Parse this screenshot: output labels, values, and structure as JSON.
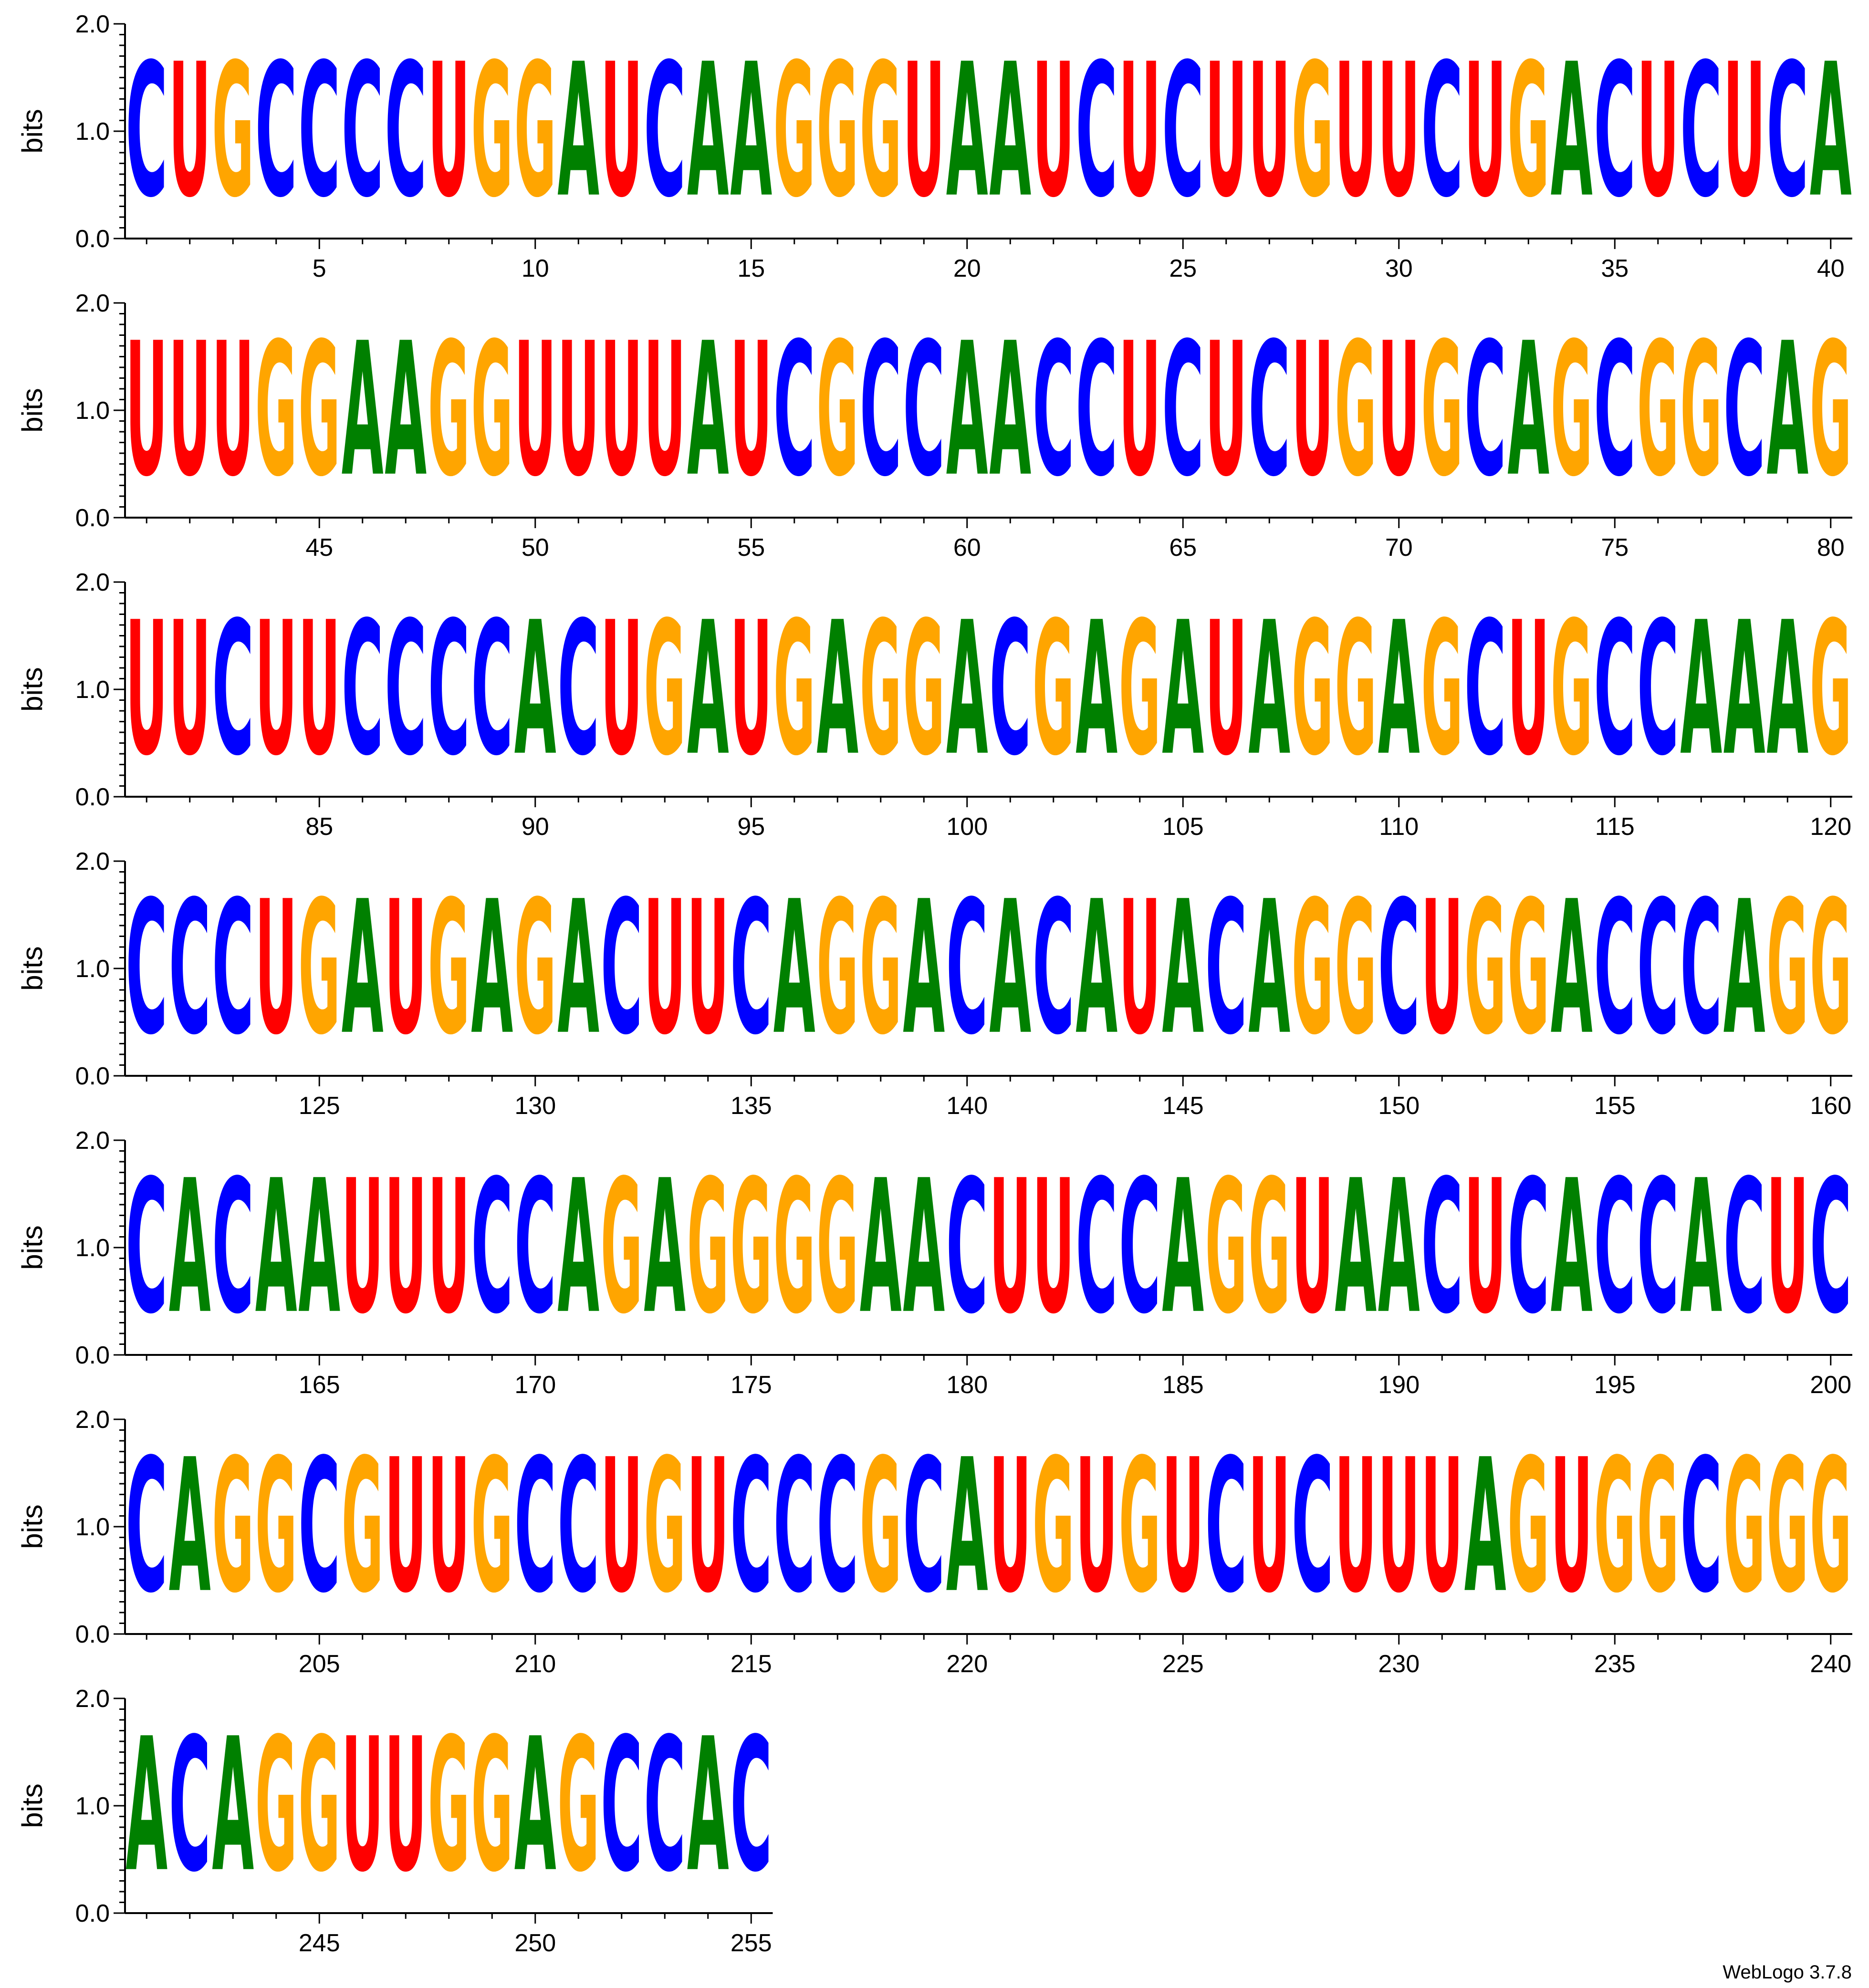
{
  "chart_data": {
    "type": "sequence-logo",
    "ylabel": "bits",
    "ylim": [
      0,
      2.0
    ],
    "y_ticks": [
      "0.0",
      "1.0",
      "2.0"
    ],
    "positions_per_row": 40,
    "start_position": 1,
    "x_tick_step": 5,
    "sequence": "CUGCCCCUGGAUCAAGGGUAAUCUCUUGUUCUGACUCUCAUUUGGAAGGUUUUAUCGCCAACCUCUCUGUGCAGCGGCAGUUCUUCCCCACUGAUGAGGACGAGAUAGGAGCUGCCAAAGCCCUGAUGAGACUUCAGGACACAUACAGGCUGGACCCAGGCACAAUUUCCAGAGGGGAACUUCCAGGUAACUCACCACUCCAGGCGUUGCCUGUCCCGCAUGUGUCUCUUUAGUGGCGGGACAGGUUGGAGCCAC",
    "letter_height_bits": 2.0,
    "colors": {
      "A": "#008000",
      "C": "#0000ff",
      "G": "#ffa500",
      "U": "#ff0000"
    }
  },
  "footer": {
    "version": "WebLogo 3.7.8"
  }
}
